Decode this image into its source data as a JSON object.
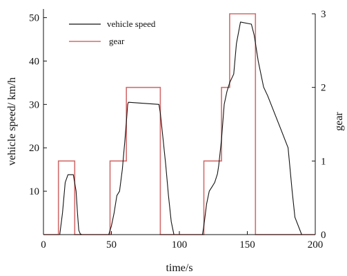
{
  "chart_data": {
    "type": "line",
    "xlabel": "time/s",
    "ylabel_left": "vehicle speed/ km/h",
    "ylabel_right": "gear",
    "xlim": [
      0,
      200
    ],
    "ylim_left": [
      0,
      52
    ],
    "ylim_right": [
      0,
      3
    ],
    "x_ticks": [
      0,
      50,
      100,
      150,
      200
    ],
    "y_left_ticks": [
      10,
      20,
      30,
      40,
      50
    ],
    "y_right_ticks": [
      0,
      1,
      2,
      3
    ],
    "grid": false,
    "legend_position": "top-left",
    "series": [
      {
        "name": "vehicle speed",
        "axis": "left",
        "color": "#111111",
        "x": [
          0,
          12,
          14,
          16,
          18,
          22,
          24,
          25,
          26,
          27,
          28,
          48,
          50,
          52,
          54,
          56,
          58,
          60,
          61,
          62,
          62.5,
          85,
          86,
          88,
          90,
          92,
          94,
          96,
          100,
          117,
          118,
          120,
          122,
          124,
          126,
          128,
          129,
          130,
          131,
          133,
          135,
          137,
          140,
          142,
          145,
          153,
          155,
          158,
          162,
          165,
          170,
          175,
          180,
          183,
          185,
          190,
          195,
          200
        ],
        "y": [
          0,
          0,
          5,
          12,
          13.8,
          13.8,
          10,
          5,
          1,
          0.2,
          0,
          0,
          2,
          5,
          9,
          10,
          15,
          22,
          26,
          30,
          30.5,
          30,
          28,
          22,
          16,
          9,
          3,
          0,
          0,
          0,
          2,
          7,
          10,
          11,
          12,
          14,
          16,
          19,
          22,
          30,
          33,
          35,
          37,
          44,
          49,
          48.5,
          46,
          40,
          34,
          32,
          28,
          24,
          20,
          10,
          4,
          0,
          0,
          0
        ]
      },
      {
        "name": "gear",
        "axis": "right",
        "color": "#d46a6a",
        "x": [
          0,
          11,
          11,
          23,
          23,
          49,
          49,
          61,
          61,
          86,
          86,
          118,
          118,
          131,
          131,
          137,
          137,
          156,
          156,
          200
        ],
        "y": [
          0,
          0,
          1,
          1,
          0,
          0,
          1,
          1,
          2,
          2,
          0,
          0,
          1,
          1,
          2,
          2,
          3,
          3,
          0,
          0
        ]
      }
    ]
  }
}
